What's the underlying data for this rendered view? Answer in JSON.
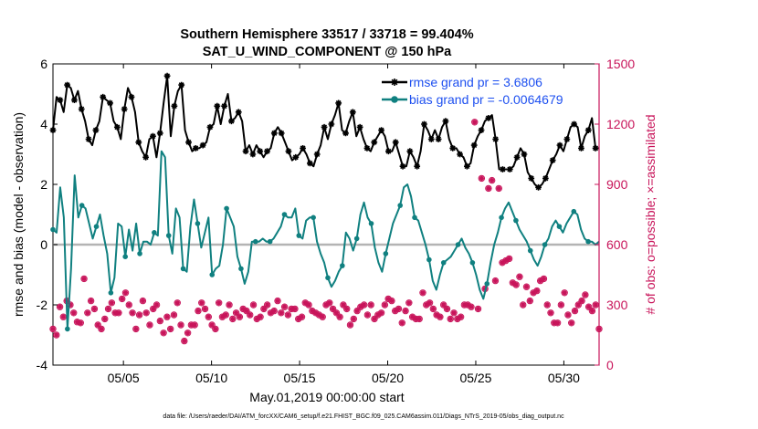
{
  "chart_data": {
    "type": "line",
    "title": "Southern Hemisphere 33517 / 33718 = 99.404%",
    "subtitle": "SAT_U_WIND_COMPONENT @ 150 hPa",
    "xlabel": "May.01,2019 00:00:00 start",
    "ylabel": "rmse and bias (model - observation)",
    "y2label": "# of obs: o=possible; ×=assimilated",
    "footnote": "data file: /Users/raeder/DAI/ATM_forcXX/CAM6_setup/f.e21.FHIST_BGC.f09_025.CAM6assim.011/Diags_NTrS_2019-05/obs_diag_output.nc",
    "xlim": [
      1,
      32
    ],
    "ylim": [
      -4,
      6
    ],
    "y2lim": [
      0,
      1500
    ],
    "xticks": [
      5,
      10,
      15,
      20,
      25,
      30
    ],
    "xtick_labels": [
      "05/05",
      "05/10",
      "05/15",
      "05/20",
      "05/25",
      "05/30"
    ],
    "yticks": [
      -4,
      -2,
      0,
      2,
      4,
      6
    ],
    "ytick_labels": [
      "-4",
      "-2",
      "0",
      "2",
      "4",
      "6"
    ],
    "y2ticks": [
      0,
      300,
      600,
      900,
      1200,
      1500
    ],
    "y2tick_labels": [
      "0",
      "300",
      "600",
      "900",
      "1200",
      "1500"
    ],
    "legend_position": "top-right",
    "colors": {
      "rmse": "#000000",
      "bias": "#108080",
      "obs": "#c8145a",
      "zero": "#b4b4b4",
      "legend_text": "#1e50f0"
    },
    "series": [
      {
        "name": "rmse grand pr = 3.6806",
        "values": [
          3.8,
          4.9,
          4.8,
          4.4,
          5.3,
          5.2,
          4.8,
          5.1,
          4.5,
          4.1,
          3.5,
          3.3,
          3.8,
          4.1,
          4.9,
          4.8,
          4.7,
          4.1,
          3.9,
          3.5,
          4.5,
          5.2,
          4.9,
          4.4,
          3.4,
          3.1,
          2.9,
          3.5,
          3.6,
          2.9,
          3.7,
          4.7,
          5.6,
          3.6,
          4.6,
          5.1,
          5.3,
          3.8,
          3.4,
          3.1,
          3.2,
          3.2,
          3.3,
          3.4,
          3.9,
          4.0,
          4.6,
          4.0,
          4.6,
          5.0,
          4.1,
          4.2,
          4.4,
          4.1,
          3.1,
          3.3,
          3.0,
          3.3,
          3.1,
          2.9,
          3.1,
          3.2,
          3.7,
          3.9,
          3.7,
          3.4,
          3.1,
          2.8,
          2.9,
          3.0,
          3.2,
          3.0,
          2.7,
          2.6,
          3.0,
          3.3,
          3.9,
          3.5,
          4.0,
          4.3,
          4.7,
          3.8,
          3.7,
          4.1,
          4.4,
          3.6,
          3.9,
          3.5,
          3.2,
          3.1,
          3.4,
          3.6,
          3.8,
          3.6,
          3.1,
          3.1,
          3.4,
          3.0,
          2.6,
          2.6,
          3.1,
          2.9,
          2.6,
          3.1,
          4.0,
          3.8,
          3.5,
          3.8,
          3.5,
          3.9,
          4.1,
          3.5,
          3.2,
          3.2,
          3.0,
          2.9,
          2.6,
          2.7,
          3.3,
          3.6,
          3.8,
          4.1,
          4.2,
          4.3,
          3.5,
          2.5,
          2.5,
          2.5,
          2.5,
          2.6,
          2.9,
          3.2,
          3.0,
          2.4,
          2.2,
          2.0,
          1.9,
          2.0,
          2.2,
          2.5,
          2.8,
          3.0,
          3.3,
          3.1,
          3.5,
          3.9,
          4.0,
          3.9,
          3.2,
          3.6,
          3.8,
          4.2,
          3.2,
          3.2
        ],
        "mark_stride": 2
      },
      {
        "name": "bias grand pr = -0.0064679",
        "values": [
          0.5,
          0.4,
          1.9,
          0.9,
          -2.8,
          -0.8,
          2.3,
          0.9,
          1.3,
          1.2,
          0.7,
          0.2,
          0.6,
          1.0,
          0.3,
          -0.3,
          -1.6,
          -1.1,
          0.7,
          0.6,
          -0.4,
          0.5,
          -0.2,
          0.7,
          -0.3,
          0.1,
          0.1,
          0.0,
          0.4,
          0.3,
          3.1,
          2.9,
          0.3,
          -0.3,
          1.2,
          0.9,
          -0.8,
          -0.9,
          0.6,
          1.5,
          0.7,
          -0.1,
          0.4,
          0.9,
          -1.0,
          -0.8,
          -0.7,
          0.0,
          1.2,
          0.9,
          0.6,
          -0.4,
          -0.8,
          -1.3,
          -0.9,
          0.1,
          0.1,
          0.1,
          0.2,
          0.1,
          0.1,
          0.2,
          0.4,
          0.6,
          1.0,
          0.9,
          0.9,
          1.2,
          0.3,
          0.2,
          0.8,
          0.9,
          0.9,
          0.1,
          -0.3,
          -0.6,
          -1.1,
          -1.4,
          -1.2,
          -0.9,
          -0.7,
          0.4,
          0.2,
          -0.2,
          0.2,
          1.0,
          1.4,
          0.9,
          0.7,
          -0.1,
          -0.6,
          -0.9,
          -0.3,
          0.2,
          0.7,
          1.0,
          1.3,
          1.9,
          2.0,
          1.6,
          0.9,
          0.8,
          0.4,
          0.0,
          -0.5,
          -1.2,
          -1.5,
          -1.0,
          -0.6,
          -0.5,
          -0.4,
          -0.2,
          0.0,
          0.2,
          -0.1,
          -0.3,
          -0.6,
          -1.0,
          -1.5,
          -1.8,
          -1.3,
          -0.6,
          0.0,
          0.4,
          0.9,
          1.2,
          1.4,
          1.1,
          0.8,
          0.5,
          0.3,
          0.1,
          -0.2,
          -0.5,
          -0.7,
          -0.4,
          0.0,
          0.2,
          0.6,
          0.8,
          0.6,
          0.4,
          0.7,
          0.9,
          1.1,
          1.0,
          0.5,
          0.2,
          0.1,
          0.1,
          0.0,
          0.1
        ],
        "mark_stride": 4
      },
      {
        "name": "# of obs possible / assimilated",
        "axis": "right",
        "marker": "asterisk",
        "values": [
          180,
          150,
          290,
          240,
          320,
          300,
          260,
          215,
          210,
          430,
          260,
          320,
          280,
          200,
          180,
          230,
          280,
          310,
          260,
          260,
          330,
          360,
          300,
          260,
          180,
          250,
          320,
          260,
          200,
          280,
          300,
          220,
          160,
          240,
          180,
          250,
          310,
          200,
          120,
          160,
          200,
          200,
          270,
          310,
          280,
          240,
          200,
          180,
          310,
          240,
          250,
          300,
          230,
          260,
          240,
          280,
          270,
          250,
          300,
          230,
          240,
          280,
          300,
          260,
          270,
          320,
          260,
          290,
          250,
          280,
          280,
          230,
          240,
          310,
          300,
          270,
          260,
          250,
          240,
          300,
          310,
          280,
          260,
          240,
          300,
          280,
          200,
          230,
          270,
          290,
          300,
          250,
          300,
          230,
          250,
          260,
          300,
          330,
          320,
          270,
          280,
          210,
          270,
          310,
          240,
          230,
          230,
          360,
          300,
          310,
          280,
          250,
          240,
          300,
          280,
          230,
          260,
          230,
          240,
          300,
          300,
          290,
          1210,
          280,
          930,
          380,
          880,
          920,
          420,
          880,
          510,
          520,
          530,
          410,
          400,
          440,
          300,
          390,
          320,
          360,
          370,
          420,
          430,
          300,
          260,
          210,
          210,
          300,
          360,
          250,
          210,
          270,
          300,
          320,
          350,
          290,
          270,
          300,
          180
        ]
      }
    ]
  }
}
